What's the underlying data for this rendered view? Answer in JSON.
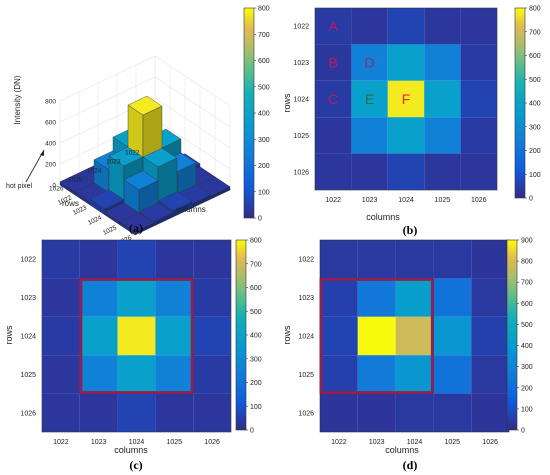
{
  "chart_data": [
    {
      "panel": "(a)",
      "type": "bar3d",
      "xlabel": "columns",
      "ylabel": "rows",
      "zlabel": "Intensity (DN)",
      "annotation": "hot pixel",
      "x_ticks": [
        "1022",
        "1023",
        "1024",
        "1025",
        "1026"
      ],
      "y_ticks": [
        "1022",
        "1023",
        "1024",
        "1025",
        "1026"
      ],
      "z_ticks": [
        "0",
        "200",
        "400",
        "600",
        "800"
      ],
      "zlim": [
        0,
        800
      ],
      "colorbar": {
        "ticks": [
          "0",
          "100",
          "200",
          "300",
          "400",
          "500",
          "600",
          "700",
          "800"
        ],
        "range": [
          0,
          800
        ]
      },
      "rows": [
        1022,
        1023,
        1024,
        1025,
        1026
      ],
      "columns": [
        1022,
        1023,
        1024,
        1025,
        1026
      ],
      "values": [
        [
          40,
          30,
          60,
          30,
          30
        ],
        [
          30,
          250,
          380,
          250,
          40
        ],
        [
          40,
          380,
          780,
          380,
          60
        ],
        [
          30,
          250,
          380,
          250,
          40
        ],
        [
          30,
          30,
          60,
          30,
          30
        ]
      ]
    },
    {
      "panel": "(b)",
      "type": "heatmap",
      "xlabel": "columns",
      "ylabel": "rows",
      "x_ticks": [
        "1022",
        "1023",
        "1024",
        "1025",
        "1026"
      ],
      "y_ticks": [
        "1022",
        "1023",
        "1024",
        "1025",
        "1026"
      ],
      "colorbar": {
        "ticks": [
          "0",
          "100",
          "200",
          "300",
          "400",
          "500",
          "600",
          "700",
          "800"
        ],
        "range": [
          0,
          800
        ]
      },
      "rows": [
        1022,
        1023,
        1024,
        1025,
        1026
      ],
      "columns": [
        1022,
        1023,
        1024,
        1025,
        1026
      ],
      "values": [
        [
          40,
          30,
          60,
          30,
          30
        ],
        [
          30,
          250,
          380,
          250,
          40
        ],
        [
          40,
          380,
          780,
          380,
          60
        ],
        [
          30,
          250,
          380,
          250,
          40
        ],
        [
          30,
          30,
          60,
          30,
          30
        ]
      ],
      "cell_labels": [
        {
          "label": "A",
          "row": 1022,
          "column": 1022,
          "color": "#c2185b"
        },
        {
          "label": "B",
          "row": 1023,
          "column": 1022,
          "color": "#c2185b"
        },
        {
          "label": "C",
          "row": 1024,
          "column": 1022,
          "color": "#c2185b"
        },
        {
          "label": "D",
          "row": 1023,
          "column": 1023,
          "color": "#8e2a7a"
        },
        {
          "label": "E",
          "row": 1024,
          "column": 1023,
          "color": "#2e6b3a"
        },
        {
          "label": "F",
          "row": 1024,
          "column": 1024,
          "color": "#e0303a"
        }
      ]
    },
    {
      "panel": "(c)",
      "type": "heatmap",
      "xlabel": "columns",
      "ylabel": "rows",
      "x_ticks": [
        "1022",
        "1023",
        "1024",
        "1025",
        "1026"
      ],
      "y_ticks": [
        "1022",
        "1023",
        "1024",
        "1025",
        "1026"
      ],
      "colorbar": {
        "ticks": [
          "0",
          "100",
          "200",
          "300",
          "400",
          "500",
          "600",
          "700",
          "800"
        ],
        "range": [
          0,
          800
        ]
      },
      "rows": [
        1022,
        1023,
        1024,
        1025,
        1026
      ],
      "columns": [
        1022,
        1023,
        1024,
        1025,
        1026
      ],
      "values": [
        [
          40,
          30,
          60,
          30,
          30
        ],
        [
          30,
          250,
          380,
          250,
          40
        ],
        [
          40,
          380,
          780,
          380,
          60
        ],
        [
          30,
          250,
          380,
          250,
          40
        ],
        [
          30,
          30,
          60,
          30,
          30
        ]
      ],
      "highlight": {
        "rows": [
          1023,
          1025
        ],
        "columns": [
          1023,
          1025
        ],
        "color": "#8b2252"
      }
    },
    {
      "panel": "(d)",
      "type": "heatmap",
      "xlabel": "columns",
      "ylabel": "rows",
      "x_ticks": [
        "1022",
        "1023",
        "1024",
        "1025",
        "1026"
      ],
      "y_ticks": [
        "1022",
        "1023",
        "1024",
        "1025",
        "1026"
      ],
      "colorbar": {
        "ticks": [
          "0",
          "100",
          "200",
          "300",
          "400",
          "500",
          "600",
          "700",
          "800",
          "900"
        ],
        "range": [
          0,
          900
        ]
      },
      "rows": [
        1022,
        1023,
        1024,
        1025,
        1026
      ],
      "columns": [
        1022,
        1023,
        1024,
        1025,
        1026
      ],
      "values": [
        [
          40,
          40,
          40,
          40,
          30
        ],
        [
          60,
          250,
          420,
          230,
          40
        ],
        [
          70,
          900,
          780,
          380,
          60
        ],
        [
          60,
          260,
          380,
          230,
          40
        ],
        [
          30,
          30,
          40,
          40,
          30
        ]
      ],
      "highlight": {
        "rows": [
          1023,
          1025
        ],
        "columns": [
          1022,
          1024
        ],
        "color": "#8b2252"
      }
    }
  ]
}
